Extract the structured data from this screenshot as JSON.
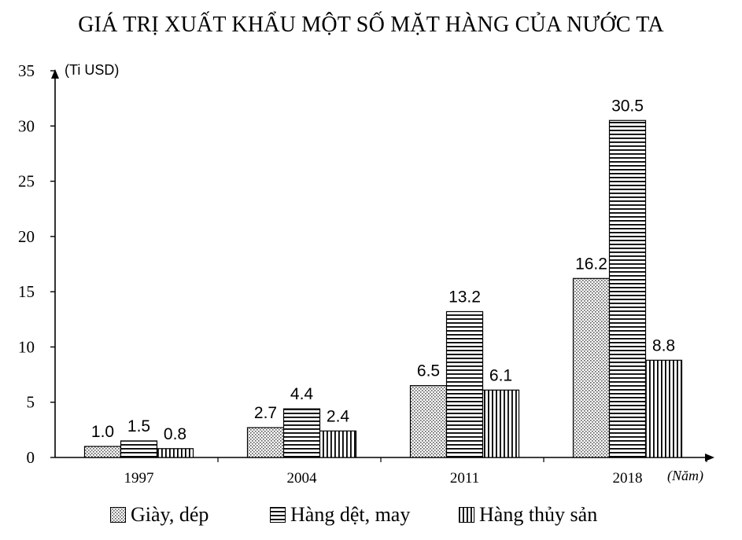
{
  "chart_data": {
    "type": "bar",
    "title": "GIÁ TRỊ XUẤT KHẨU MỘT SỐ MẶT HÀNG CỦA NƯỚC TA",
    "ylabel": "(Ti USD)",
    "xlabel": "(Năm)",
    "categories": [
      "1997",
      "2004",
      "2011",
      "2018"
    ],
    "ylim": [
      0,
      35
    ],
    "yticks": [
      "0",
      "5",
      "10",
      "15",
      "20",
      "25",
      "30",
      "35"
    ],
    "series": [
      {
        "name": "Giày, dép",
        "values": [
          1.0,
          2.7,
          6.5,
          16.2
        ],
        "labels": [
          "1.0",
          "2.7",
          "6.5",
          "16.2"
        ],
        "pattern": "dots"
      },
      {
        "name": "Hàng dệt, may",
        "values": [
          1.5,
          4.4,
          13.2,
          30.5
        ],
        "labels": [
          "1.5",
          "4.4",
          "13.2",
          "30.5"
        ],
        "pattern": "horizontal-lines"
      },
      {
        "name": "Hàng thủy sản",
        "values": [
          0.8,
          2.4,
          6.1,
          8.8
        ],
        "labels": [
          "0.8",
          "2.4",
          "6.1",
          "8.8"
        ],
        "pattern": "vertical-lines"
      }
    ],
    "grid": false,
    "legend_position": "bottom"
  }
}
